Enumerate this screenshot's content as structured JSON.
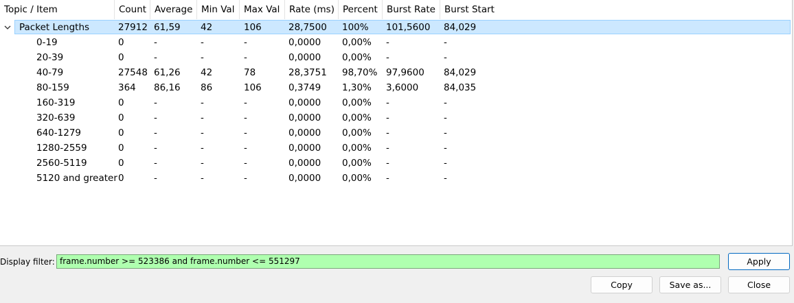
{
  "columns": [
    "Topic / Item",
    "Count",
    "Average",
    "Min Val",
    "Max Val",
    "Rate (ms)",
    "Percent",
    "Burst Rate",
    "Burst Start"
  ],
  "rows": [
    {
      "topic": "Packet Lengths",
      "count": "27912",
      "avg": "61,59",
      "min": "42",
      "max": "106",
      "rate": "28,7500",
      "pct": "100%",
      "brate": "101,5600",
      "bstart": "84,029"
    },
    {
      "topic": "0-19",
      "count": "0",
      "avg": "-",
      "min": "-",
      "max": "-",
      "rate": "0,0000",
      "pct": "0,00%",
      "brate": "-",
      "bstart": "-"
    },
    {
      "topic": "20-39",
      "count": "0",
      "avg": "-",
      "min": "-",
      "max": "-",
      "rate": "0,0000",
      "pct": "0,00%",
      "brate": "-",
      "bstart": "-"
    },
    {
      "topic": "40-79",
      "count": "27548",
      "avg": "61,26",
      "min": "42",
      "max": "78",
      "rate": "28,3751",
      "pct": "98,70%",
      "brate": "97,9600",
      "bstart": "84,029"
    },
    {
      "topic": "80-159",
      "count": "364",
      "avg": "86,16",
      "min": "86",
      "max": "106",
      "rate": "0,3749",
      "pct": "1,30%",
      "brate": "3,6000",
      "bstart": "84,035"
    },
    {
      "topic": "160-319",
      "count": "0",
      "avg": "-",
      "min": "-",
      "max": "-",
      "rate": "0,0000",
      "pct": "0,00%",
      "brate": "-",
      "bstart": "-"
    },
    {
      "topic": "320-639",
      "count": "0",
      "avg": "-",
      "min": "-",
      "max": "-",
      "rate": "0,0000",
      "pct": "0,00%",
      "brate": "-",
      "bstart": "-"
    },
    {
      "topic": "640-1279",
      "count": "0",
      "avg": "-",
      "min": "-",
      "max": "-",
      "rate": "0,0000",
      "pct": "0,00%",
      "brate": "-",
      "bstart": "-"
    },
    {
      "topic": "1280-2559",
      "count": "0",
      "avg": "-",
      "min": "-",
      "max": "-",
      "rate": "0,0000",
      "pct": "0,00%",
      "brate": "-",
      "bstart": "-"
    },
    {
      "topic": "2560-5119",
      "count": "0",
      "avg": "-",
      "min": "-",
      "max": "-",
      "rate": "0,0000",
      "pct": "0,00%",
      "brate": "-",
      "bstart": "-"
    },
    {
      "topic": "5120 and greater",
      "count": "0",
      "avg": "-",
      "min": "-",
      "max": "-",
      "rate": "0,0000",
      "pct": "0,00%",
      "brate": "-",
      "bstart": "-"
    }
  ],
  "filter": {
    "label": "Display filter:",
    "value": "frame.number >= 523386 and frame.number <= 551297"
  },
  "buttons": {
    "apply": "Apply",
    "copy": "Copy",
    "save_as": "Save as...",
    "close": "Close"
  },
  "colors": {
    "selection": "#cce8ff",
    "filter_valid": "#afffaf"
  },
  "icons": {
    "expander": "chevron-down-icon",
    "sort": "sort-indicator-icon"
  }
}
